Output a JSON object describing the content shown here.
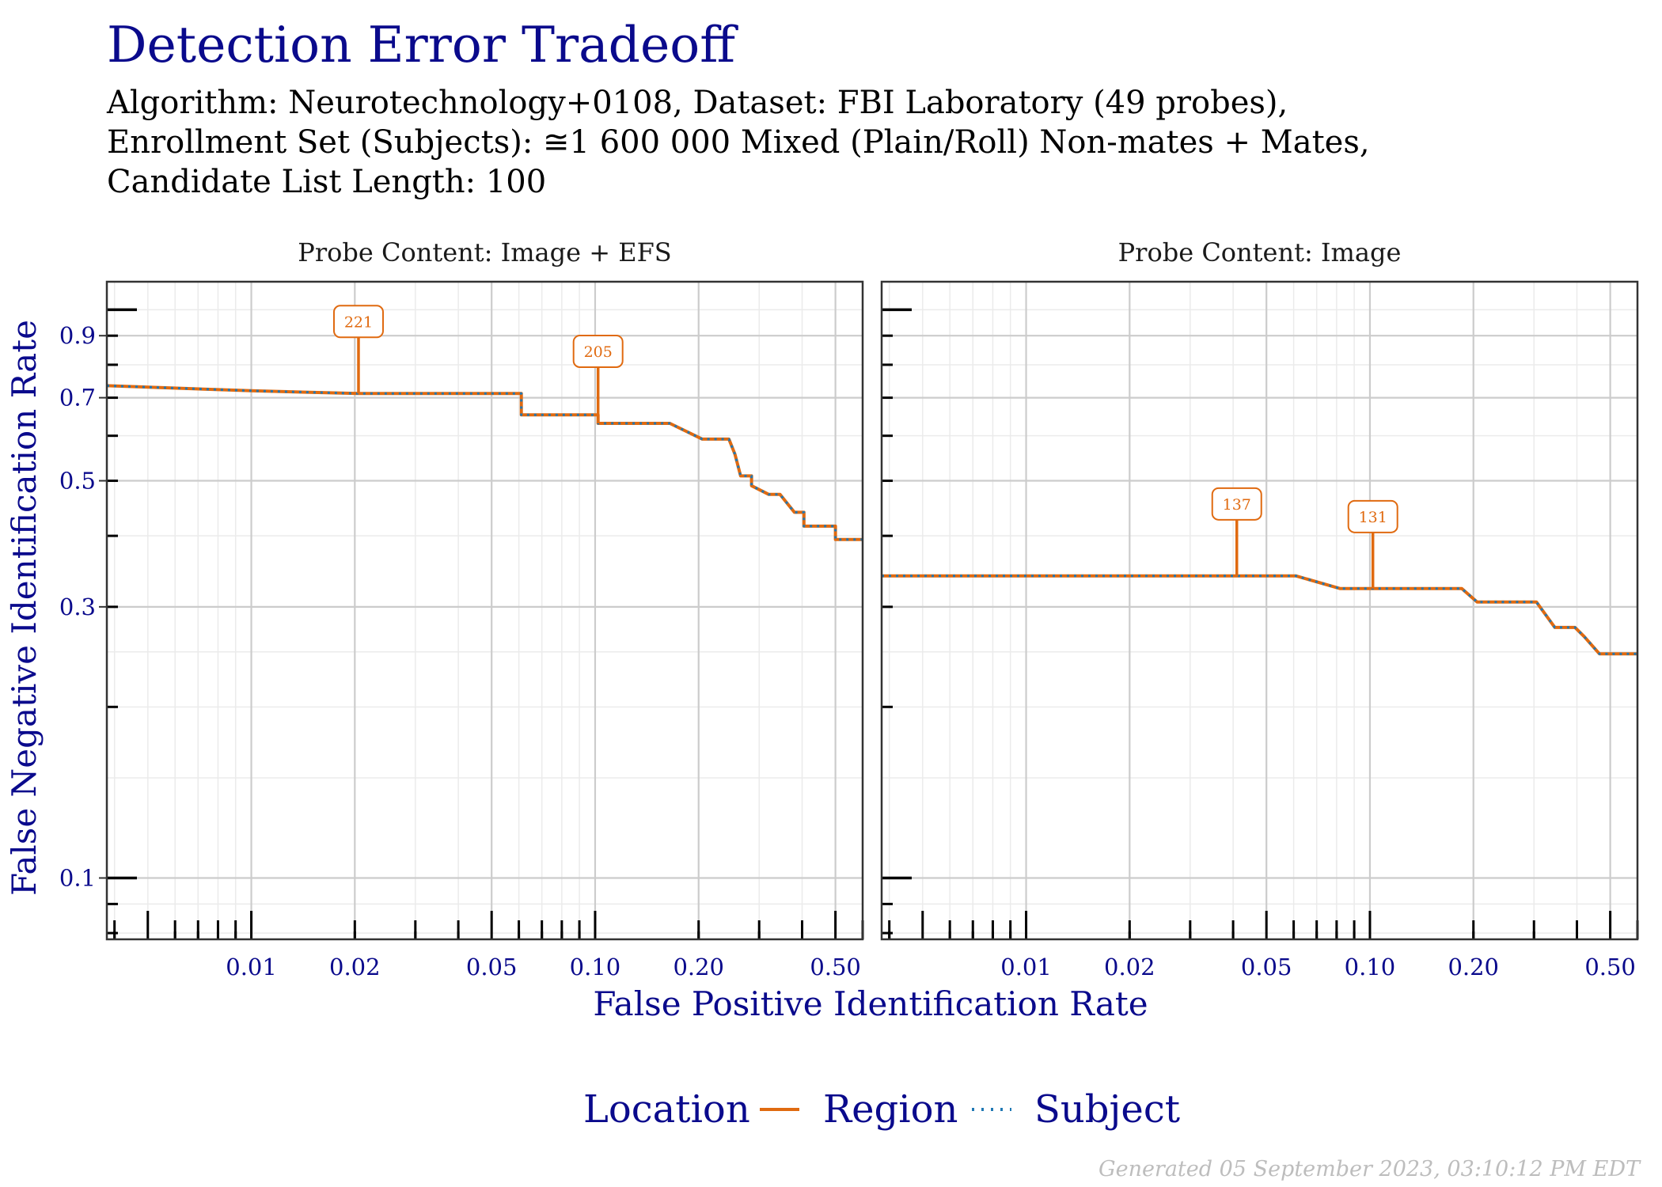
{
  "title": "Detection Error Tradeoff",
  "subtitle_lines": [
    "Algorithm: Neurotechnology+0108, Dataset: FBI Laboratory (49 probes),",
    "Enrollment Set (Subjects): ≅1 600 000 Mixed (Plain/Roll) Non-mates + Mates,",
    "Candidate List Length: 100"
  ],
  "footer": "Generated 05 September 2023, 03:10:12 PM EDT",
  "colors": {
    "title": "#0a0a8c",
    "region": "#e06a10",
    "subject": "#1f78b4",
    "grid_major": "#cccccc",
    "grid_minor": "#ebebeb"
  },
  "chart_data": {
    "type": "line",
    "xlabel": "False Positive Identification Rate",
    "ylabel": "False Negative Identification Rate",
    "x_scale": "log",
    "y_scale": "log",
    "xlim": [
      0.0038,
      0.6
    ],
    "ylim": [
      0.078,
      1.12
    ],
    "x_ticks": [
      0.01,
      0.02,
      0.05,
      0.1,
      0.2,
      0.5
    ],
    "x_tick_labels": [
      "0.01",
      "0.02",
      "0.05",
      "0.10",
      "0.20",
      "0.50"
    ],
    "y_ticks": [
      0.1,
      0.3,
      0.5,
      0.7,
      0.9
    ],
    "y_tick_labels": [
      "0.1",
      "0.3",
      "0.5",
      "0.7",
      "0.9"
    ],
    "legend": {
      "title": "Location",
      "entries": [
        "Region",
        "Subject"
      ],
      "position": "bottom"
    },
    "panels": [
      {
        "strip": "Probe Content: Image + EFS",
        "series": [
          {
            "name": "Region",
            "style": "solid",
            "points": [
              [
                0.0038,
                0.735
              ],
              [
                0.01,
                0.72
              ],
              [
                0.0205,
                0.712
              ],
              [
                0.061,
                0.712
              ],
              [
                0.061,
                0.653
              ],
              [
                0.102,
                0.653
              ],
              [
                0.102,
                0.631
              ],
              [
                0.165,
                0.631
              ],
              [
                0.205,
                0.592
              ],
              [
                0.245,
                0.592
              ],
              [
                0.255,
                0.557
              ],
              [
                0.265,
                0.51
              ],
              [
                0.285,
                0.51
              ],
              [
                0.285,
                0.49
              ],
              [
                0.32,
                0.473
              ],
              [
                0.345,
                0.473
              ],
              [
                0.38,
                0.44
              ],
              [
                0.405,
                0.44
              ],
              [
                0.405,
                0.416
              ],
              [
                0.5,
                0.416
              ],
              [
                0.5,
                0.394
              ],
              [
                0.6,
                0.394
              ]
            ]
          },
          {
            "name": "Subject",
            "style": "dotted",
            "points": [
              [
                0.0038,
                0.735
              ],
              [
                0.01,
                0.72
              ],
              [
                0.0205,
                0.712
              ],
              [
                0.061,
                0.712
              ],
              [
                0.061,
                0.653
              ],
              [
                0.102,
                0.653
              ],
              [
                0.102,
                0.631
              ],
              [
                0.165,
                0.631
              ],
              [
                0.205,
                0.592
              ],
              [
                0.245,
                0.592
              ],
              [
                0.255,
                0.557
              ],
              [
                0.265,
                0.51
              ],
              [
                0.285,
                0.51
              ],
              [
                0.285,
                0.49
              ],
              [
                0.32,
                0.473
              ],
              [
                0.345,
                0.473
              ],
              [
                0.38,
                0.44
              ],
              [
                0.405,
                0.44
              ],
              [
                0.405,
                0.416
              ],
              [
                0.5,
                0.416
              ],
              [
                0.5,
                0.394
              ],
              [
                0.6,
                0.394
              ]
            ]
          }
        ],
        "annotations": [
          {
            "label": "221",
            "x": 0.0205,
            "y": 0.712
          },
          {
            "label": "205",
            "x": 0.102,
            "y": 0.631
          }
        ]
      },
      {
        "strip": "Probe Content: Image",
        "series": [
          {
            "name": "Region",
            "style": "solid",
            "points": [
              [
                0.0038,
                0.34
              ],
              [
                0.041,
                0.34
              ],
              [
                0.061,
                0.34
              ],
              [
                0.082,
                0.323
              ],
              [
                0.102,
                0.323
              ],
              [
                0.185,
                0.323
              ],
              [
                0.205,
                0.306
              ],
              [
                0.305,
                0.306
              ],
              [
                0.345,
                0.276
              ],
              [
                0.395,
                0.276
              ],
              [
                0.42,
                0.266
              ],
              [
                0.465,
                0.248
              ],
              [
                0.6,
                0.248
              ]
            ]
          },
          {
            "name": "Subject",
            "style": "dotted",
            "points": [
              [
                0.0038,
                0.34
              ],
              [
                0.041,
                0.34
              ],
              [
                0.061,
                0.34
              ],
              [
                0.082,
                0.323
              ],
              [
                0.102,
                0.323
              ],
              [
                0.185,
                0.323
              ],
              [
                0.205,
                0.306
              ],
              [
                0.305,
                0.306
              ],
              [
                0.345,
                0.276
              ],
              [
                0.395,
                0.276
              ],
              [
                0.42,
                0.266
              ],
              [
                0.465,
                0.248
              ],
              [
                0.6,
                0.248
              ]
            ]
          }
        ],
        "annotations": [
          {
            "label": "137",
            "x": 0.041,
            "y": 0.34
          },
          {
            "label": "131",
            "x": 0.102,
            "y": 0.323
          }
        ]
      }
    ]
  }
}
